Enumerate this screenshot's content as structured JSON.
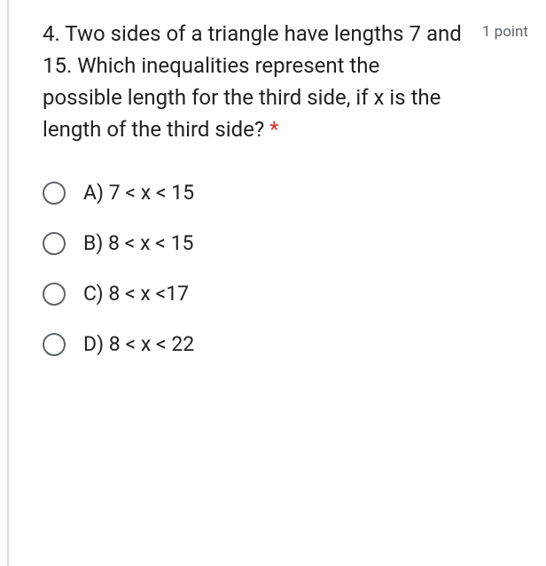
{
  "question": {
    "text": "4. Two sides of a triangle have lengths 7 and 15. Which inequalities represent the possible length for the third side, if x is the length of the third side?",
    "required_marker": "*",
    "points_label": "1 point"
  },
  "options": [
    {
      "label": "A) 7 < x < 15"
    },
    {
      "label": "B) 8 < x < 15"
    },
    {
      "label": "C) 8 < x <17"
    },
    {
      "label": "D) 8 < x < 22"
    }
  ],
  "styling": {
    "text_color": "#202124",
    "muted_color": "#5f6368",
    "required_color": "#d93025",
    "border_color": "#e0e0e0",
    "background_color": "#ffffff",
    "question_fontsize": 24,
    "option_fontsize": 23,
    "points_fontsize": 17,
    "radio_size": 26,
    "radio_border_width": 2.5
  }
}
